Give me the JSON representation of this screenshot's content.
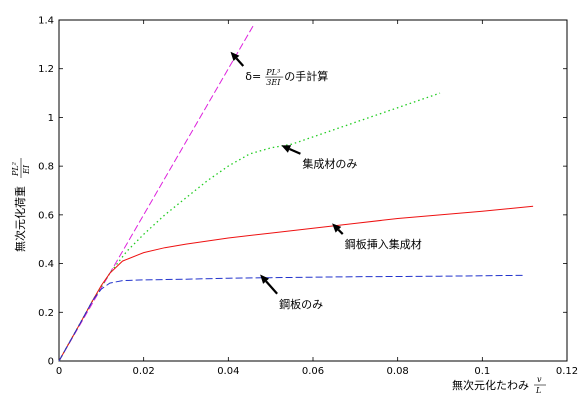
{
  "chart_data": {
    "type": "line",
    "xlim": [
      0,
      0.12
    ],
    "ylim": [
      0,
      1.4
    ],
    "x_ticks": [
      "0",
      "0.02",
      "0.04",
      "0.06",
      "0.08",
      "0.1",
      "0.12"
    ],
    "y_ticks": [
      "0",
      "0.2",
      "0.4",
      "0.6",
      "0.8",
      "1",
      "1.2",
      "1.4"
    ],
    "xlabel": "無次元化たわみ",
    "xlabel_fraction": {
      "numerator": "v",
      "denominator": "L"
    },
    "ylabel": "無次元化荷重",
    "ylabel_fraction": {
      "numerator": "PL²",
      "denominator": "EI"
    },
    "grid": false,
    "legend": "none",
    "series": [
      {
        "name": "δ=PL³/3EI の手計算",
        "color": "#dd22dd",
        "style": "dashed",
        "x": [
          0,
          0.046
        ],
        "y": [
          0,
          1.38
        ]
      },
      {
        "name": "集成材のみ",
        "color": "#22cc22",
        "style": "dotted",
        "x": [
          0,
          0.005,
          0.008,
          0.012,
          0.016,
          0.02,
          0.025,
          0.03,
          0.035,
          0.04,
          0.045,
          0.05,
          0.055,
          0.06,
          0.065,
          0.07,
          0.075,
          0.08,
          0.085,
          0.09
        ],
        "y": [
          0,
          0.155,
          0.25,
          0.36,
          0.45,
          0.52,
          0.6,
          0.67,
          0.74,
          0.8,
          0.85,
          0.875,
          0.89,
          0.92,
          0.95,
          0.98,
          1.01,
          1.04,
          1.07,
          1.1
        ]
      },
      {
        "name": "鋼板挿入集成材",
        "color": "#ee1111",
        "style": "solid",
        "x": [
          0,
          0.005,
          0.008,
          0.01,
          0.012,
          0.015,
          0.02,
          0.025,
          0.03,
          0.04,
          0.05,
          0.06,
          0.07,
          0.08,
          0.09,
          0.1,
          0.112
        ],
        "y": [
          0,
          0.155,
          0.25,
          0.31,
          0.36,
          0.41,
          0.445,
          0.465,
          0.48,
          0.505,
          0.525,
          0.545,
          0.565,
          0.585,
          0.6,
          0.615,
          0.635
        ]
      },
      {
        "name": "鋼板のみ",
        "color": "#2233cc",
        "style": "dashed",
        "x": [
          0,
          0.005,
          0.008,
          0.01,
          0.012,
          0.015,
          0.02,
          0.03,
          0.04,
          0.05,
          0.06,
          0.07,
          0.08,
          0.09,
          0.1,
          0.11
        ],
        "y": [
          0,
          0.155,
          0.25,
          0.295,
          0.32,
          0.33,
          0.333,
          0.336,
          0.34,
          0.342,
          0.344,
          0.346,
          0.347,
          0.348,
          0.35,
          0.352
        ]
      }
    ],
    "annotations": [
      {
        "id": "hand",
        "text_pre": "δ=",
        "frac_num": "PL³",
        "frac_den": "3EI",
        "text_post": " の手計算",
        "arrow_tip": [
          0.0405,
          1.27
        ],
        "text_at": [
          0.044,
          1.17
        ]
      },
      {
        "id": "glulam",
        "text": "集成材のみ",
        "arrow_tip": [
          0.0525,
          0.885
        ],
        "text_at": [
          0.0575,
          0.81
        ]
      },
      {
        "id": "steel_glulam",
        "text": "鋼板挿入集成材",
        "arrow_tip": [
          0.0645,
          0.565
        ],
        "text_at": [
          0.0675,
          0.48
        ]
      },
      {
        "id": "steel",
        "text": "鋼板のみ",
        "arrow_tip": [
          0.0475,
          0.355
        ],
        "text_at": [
          0.052,
          0.235
        ]
      }
    ]
  }
}
